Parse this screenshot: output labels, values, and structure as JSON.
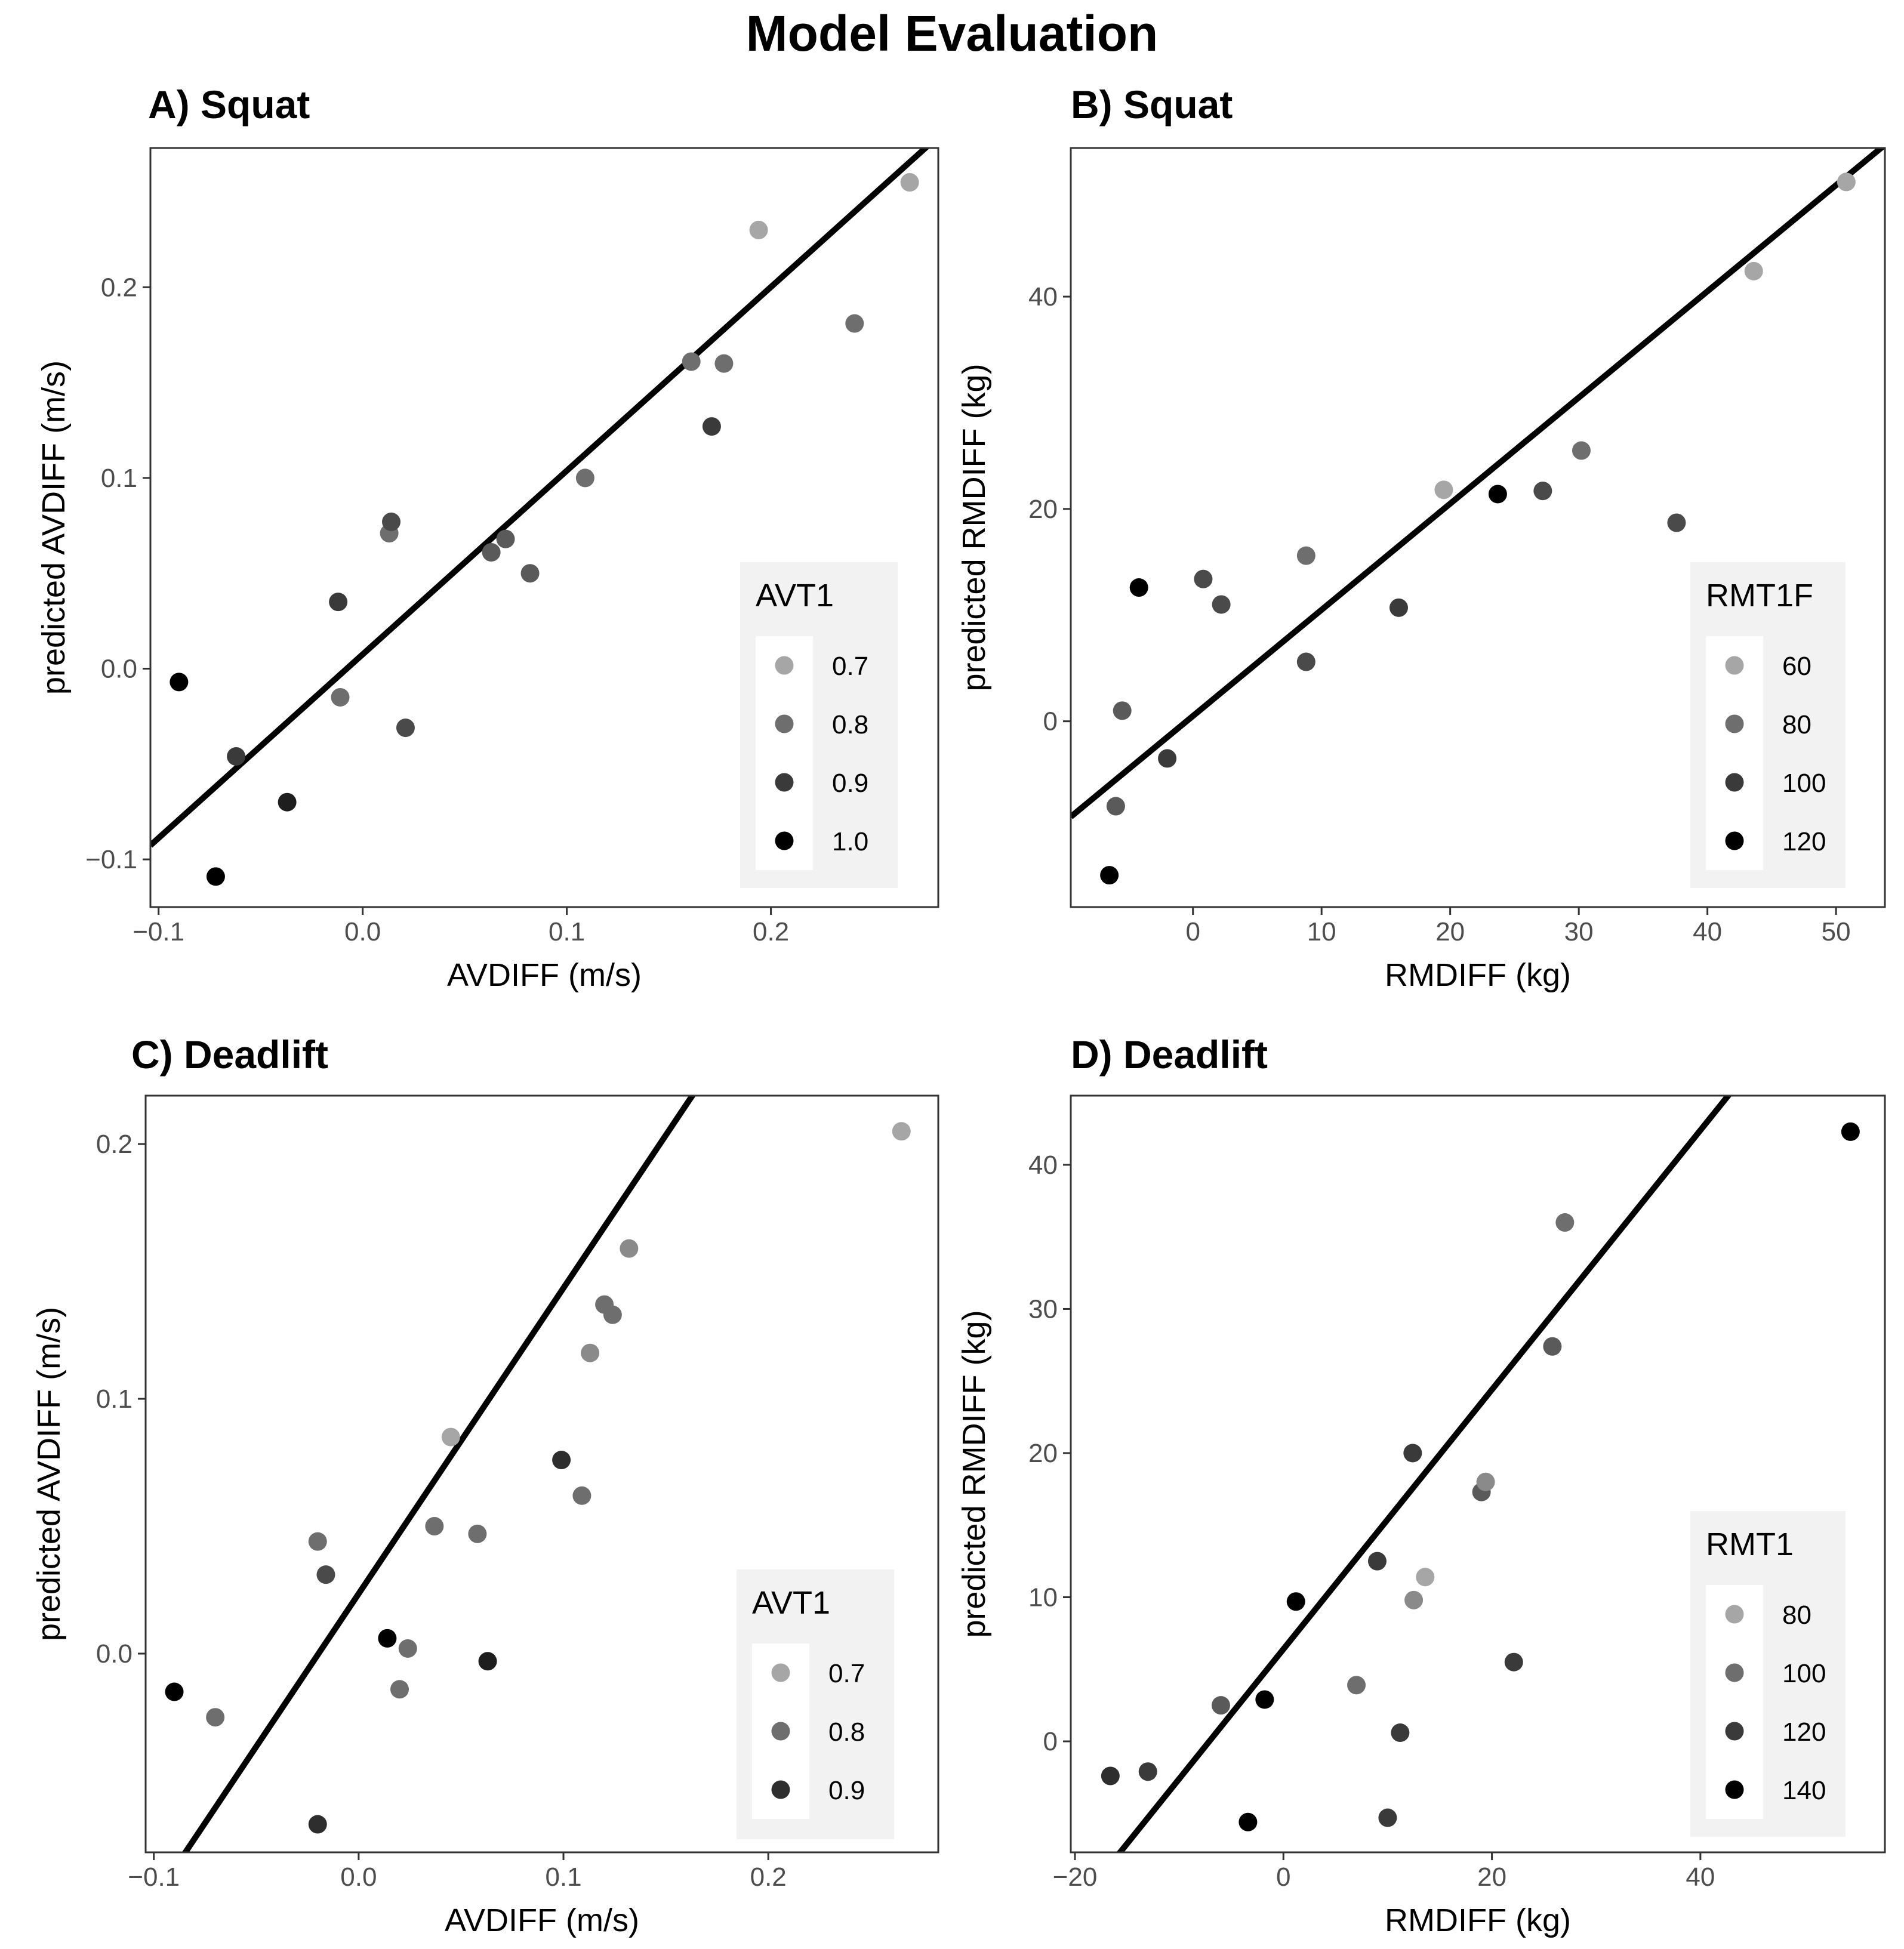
{
  "title": "Model Evaluation",
  "colors": {
    "fit_line": "#000000",
    "legend_bg": "#f2f2f2",
    "panel_border": "#333333",
    "tick_text": "#4d4d4d"
  },
  "chart_data": [
    {
      "id": "A",
      "type": "scatter",
      "title": "A) Squat",
      "xlabel": "AVDIFF (m/s)",
      "ylabel": "predicted AVDIFF (m/s)",
      "xlim": [
        -0.104,
        0.282
      ],
      "ylim": [
        -0.125,
        0.273
      ],
      "xticks": [
        -0.1,
        0.0,
        0.1,
        0.2
      ],
      "xtick_labels": [
        "-0.1",
        "0.0",
        "0.1",
        "0.2"
      ],
      "yticks": [
        -0.1,
        0.0,
        0.1,
        0.2
      ],
      "ytick_labels": [
        "-0.1",
        "0.0",
        "0.1",
        "0.2"
      ],
      "fit_line": {
        "intercept": 0.0075,
        "slope": 0.963
      },
      "legend": {
        "title": "AVT1",
        "entries": [
          {
            "label": "0.7",
            "color": "#a6a6a6"
          },
          {
            "label": "0.8",
            "color": "#6e6e6e"
          },
          {
            "label": "0.9",
            "color": "#3a3a3a"
          },
          {
            "label": "1.0",
            "color": "#000000"
          }
        ]
      },
      "points": [
        {
          "x": -0.09,
          "y": -0.007,
          "color": "#000000"
        },
        {
          "x": -0.072,
          "y": -0.109,
          "color": "#000000"
        },
        {
          "x": -0.062,
          "y": -0.046,
          "color": "#3a3a3a"
        },
        {
          "x": -0.037,
          "y": -0.07,
          "color": "#1e1e1e"
        },
        {
          "x": -0.012,
          "y": 0.035,
          "color": "#3a3a3a"
        },
        {
          "x": -0.011,
          "y": -0.015,
          "color": "#6e6e6e"
        },
        {
          "x": 0.013,
          "y": 0.071,
          "color": "#6e6e6e"
        },
        {
          "x": 0.014,
          "y": 0.077,
          "color": "#4a4a4a"
        },
        {
          "x": 0.021,
          "y": -0.031,
          "color": "#4a4a4a"
        },
        {
          "x": 0.063,
          "y": 0.061,
          "color": "#5a5a5a"
        },
        {
          "x": 0.07,
          "y": 0.068,
          "color": "#5a5a5a"
        },
        {
          "x": 0.082,
          "y": 0.05,
          "color": "#5a5a5a"
        },
        {
          "x": 0.109,
          "y": 0.1,
          "color": "#6e6e6e"
        },
        {
          "x": 0.161,
          "y": 0.161,
          "color": "#6e6e6e"
        },
        {
          "x": 0.171,
          "y": 0.127,
          "color": "#3a3a3a"
        },
        {
          "x": 0.177,
          "y": 0.16,
          "color": "#6e6e6e"
        },
        {
          "x": 0.194,
          "y": 0.23,
          "color": "#a6a6a6"
        },
        {
          "x": 0.241,
          "y": 0.181,
          "color": "#6e6e6e"
        },
        {
          "x": 0.268,
          "y": 0.255,
          "color": "#a6a6a6"
        }
      ]
    },
    {
      "id": "B",
      "type": "scatter",
      "title": "B) Squat",
      "xlabel": "RMDIFF (kg)",
      "ylabel": "predicted RMDIFF (kg)",
      "xlim": [
        -9.5,
        53.8
      ],
      "ylim": [
        -17.5,
        54.0
      ],
      "xticks": [
        0,
        10,
        20,
        30,
        40,
        50
      ],
      "xtick_labels": [
        "0",
        "10",
        "20",
        "30",
        "40",
        "50"
      ],
      "yticks": [
        0,
        20,
        40
      ],
      "ytick_labels": [
        "0",
        "20",
        "40"
      ],
      "fit_line": {
        "intercept": 0.5,
        "slope": 1.0
      },
      "legend": {
        "title": "RMT1F",
        "entries": [
          {
            "label": "60",
            "color": "#a6a6a6"
          },
          {
            "label": "80",
            "color": "#6e6e6e"
          },
          {
            "label": "100",
            "color": "#3a3a3a"
          },
          {
            "label": "120",
            "color": "#000000"
          }
        ]
      },
      "points": [
        {
          "x": -6.5,
          "y": -14.5,
          "color": "#000000"
        },
        {
          "x": -6.0,
          "y": -8.0,
          "color": "#5a5a5a"
        },
        {
          "x": -5.5,
          "y": 1.0,
          "color": "#5a5a5a"
        },
        {
          "x": -4.2,
          "y": 12.6,
          "color": "#000000"
        },
        {
          "x": -2.0,
          "y": -3.5,
          "color": "#3a3a3a"
        },
        {
          "x": 0.8,
          "y": 13.4,
          "color": "#4a4a4a"
        },
        {
          "x": 2.2,
          "y": 11.0,
          "color": "#4a4a4a"
        },
        {
          "x": 8.8,
          "y": 15.6,
          "color": "#6e6e6e"
        },
        {
          "x": 8.8,
          "y": 5.6,
          "color": "#4a4a4a"
        },
        {
          "x": 16.0,
          "y": 10.7,
          "color": "#3a3a3a"
        },
        {
          "x": 19.5,
          "y": 21.8,
          "color": "#a6a6a6"
        },
        {
          "x": 23.7,
          "y": 21.4,
          "color": "#000000"
        },
        {
          "x": 27.2,
          "y": 21.7,
          "color": "#4a4a4a"
        },
        {
          "x": 30.2,
          "y": 25.5,
          "color": "#6e6e6e"
        },
        {
          "x": 37.6,
          "y": 18.7,
          "color": "#4a4a4a"
        },
        {
          "x": 43.6,
          "y": 42.4,
          "color": "#a6a6a6"
        },
        {
          "x": 50.8,
          "y": 50.8,
          "color": "#a6a6a6"
        }
      ]
    },
    {
      "id": "C",
      "type": "scatter",
      "title": "C) Deadlift",
      "xlabel": "AVDIFF (m/s)",
      "ylabel": "predicted AVDIFF (m/s)",
      "xlim": [
        -0.104,
        0.283
      ],
      "ylim": [
        -0.078,
        0.219
      ],
      "xticks": [
        -0.1,
        0.0,
        0.1,
        0.2
      ],
      "xtick_labels": [
        "-0.1",
        "0.0",
        "0.1",
        "0.2"
      ],
      "yticks": [
        0.0,
        0.1,
        0.2
      ],
      "ytick_labels": [
        "0.0",
        "0.1",
        "0.2"
      ],
      "fit_line": {
        "intercept": 0.0235,
        "slope": 1.2
      },
      "legend": {
        "title": "AVT1",
        "entries": [
          {
            "label": "0.7",
            "color": "#a6a6a6"
          },
          {
            "label": "0.8",
            "color": "#6e6e6e"
          },
          {
            "label": "0.9",
            "color": "#2e2e2e"
          }
        ]
      },
      "points": [
        {
          "x": -0.09,
          "y": -0.015,
          "color": "#000000"
        },
        {
          "x": -0.07,
          "y": -0.025,
          "color": "#6e6e6e"
        },
        {
          "x": -0.02,
          "y": 0.044,
          "color": "#6e6e6e"
        },
        {
          "x": -0.02,
          "y": -0.067,
          "color": "#2e2e2e"
        },
        {
          "x": -0.016,
          "y": 0.031,
          "color": "#4a4a4a"
        },
        {
          "x": 0.014,
          "y": 0.006,
          "color": "#000000"
        },
        {
          "x": 0.02,
          "y": -0.014,
          "color": "#6e6e6e"
        },
        {
          "x": 0.024,
          "y": 0.002,
          "color": "#6e6e6e"
        },
        {
          "x": 0.037,
          "y": 0.05,
          "color": "#6e6e6e"
        },
        {
          "x": 0.045,
          "y": 0.085,
          "color": "#a6a6a6"
        },
        {
          "x": 0.058,
          "y": 0.047,
          "color": "#6e6e6e"
        },
        {
          "x": 0.063,
          "y": -0.003,
          "color": "#1e1e1e"
        },
        {
          "x": 0.099,
          "y": 0.076,
          "color": "#2e2e2e"
        },
        {
          "x": 0.109,
          "y": 0.062,
          "color": "#6e6e6e"
        },
        {
          "x": 0.113,
          "y": 0.118,
          "color": "#8a8a8a"
        },
        {
          "x": 0.12,
          "y": 0.137,
          "color": "#6e6e6e"
        },
        {
          "x": 0.124,
          "y": 0.133,
          "color": "#6e6e6e"
        },
        {
          "x": 0.132,
          "y": 0.159,
          "color": "#8a8a8a"
        },
        {
          "x": 0.265,
          "y": 0.205,
          "color": "#a6a6a6"
        }
      ]
    },
    {
      "id": "D",
      "type": "scatter",
      "title": "D) Deadlift",
      "xlabel": "RMDIFF (kg)",
      "ylabel": "predicted RMDIFF (kg)",
      "xlim": [
        -20.4,
        57.7
      ],
      "ylim": [
        -7.7,
        44.8
      ],
      "xticks": [
        -20,
        0,
        20,
        40
      ],
      "xtick_labels": [
        "-20",
        "0",
        "20",
        "40"
      ],
      "yticks": [
        0,
        10,
        20,
        30,
        40
      ],
      "ytick_labels": [
        "0",
        "10",
        "20",
        "30",
        "40"
      ],
      "fit_line": {
        "intercept": 6.4,
        "slope": 0.9
      },
      "legend": {
        "title": "RMT1",
        "entries": [
          {
            "label": "80",
            "color": "#a6a6a6"
          },
          {
            "label": "100",
            "color": "#6e6e6e"
          },
          {
            "label": "120",
            "color": "#3a3a3a"
          },
          {
            "label": "140",
            "color": "#000000"
          }
        ]
      },
      "points": [
        {
          "x": -16.6,
          "y": -2.4,
          "color": "#2e2e2e"
        },
        {
          "x": -13.0,
          "y": -2.1,
          "color": "#3a3a3a"
        },
        {
          "x": -6.0,
          "y": 2.5,
          "color": "#5a5a5a"
        },
        {
          "x": -3.4,
          "y": -5.6,
          "color": "#000000"
        },
        {
          "x": -1.8,
          "y": 2.9,
          "color": "#000000"
        },
        {
          "x": 1.2,
          "y": 9.7,
          "color": "#000000"
        },
        {
          "x": 7.0,
          "y": 3.9,
          "color": "#6e6e6e"
        },
        {
          "x": 9.0,
          "y": 12.5,
          "color": "#3a3a3a"
        },
        {
          "x": 10.0,
          "y": -5.3,
          "color": "#3a3a3a"
        },
        {
          "x": 11.2,
          "y": 0.6,
          "color": "#3a3a3a"
        },
        {
          "x": 12.4,
          "y": 20.0,
          "color": "#3a3a3a"
        },
        {
          "x": 12.5,
          "y": 9.8,
          "color": "#8a8a8a"
        },
        {
          "x": 13.6,
          "y": 11.4,
          "color": "#a6a6a6"
        },
        {
          "x": 19.0,
          "y": 17.3,
          "color": "#5a5a5a"
        },
        {
          "x": 19.4,
          "y": 18.0,
          "color": "#8a8a8a"
        },
        {
          "x": 22.1,
          "y": 5.5,
          "color": "#3a3a3a"
        },
        {
          "x": 25.8,
          "y": 27.4,
          "color": "#5a5a5a"
        },
        {
          "x": 27.0,
          "y": 36.0,
          "color": "#6e6e6e"
        },
        {
          "x": 54.4,
          "y": 42.3,
          "color": "#000000"
        }
      ]
    }
  ]
}
